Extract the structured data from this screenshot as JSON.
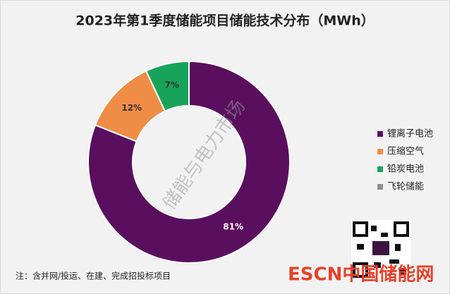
{
  "chart_data": {
    "type": "donut",
    "title": "2023年第1季度储能项目储能技术分布（MWh）",
    "categories": [
      "锂离子电池",
      "压缩空气",
      "铅炭电池",
      "飞轮储能"
    ],
    "values": [
      81,
      12,
      7,
      0
    ],
    "value_labels": [
      "81%",
      "12%",
      "7%",
      null
    ],
    "colors": [
      "#5a0f5e",
      "#ef8d47",
      "#17a45a",
      "#8c8c8c"
    ],
    "legend": "right",
    "note": "注：含并网/投运、在建、完成招投标项目",
    "watermark": "储能与电力市场",
    "logo": "ESCN中国储能网"
  }
}
